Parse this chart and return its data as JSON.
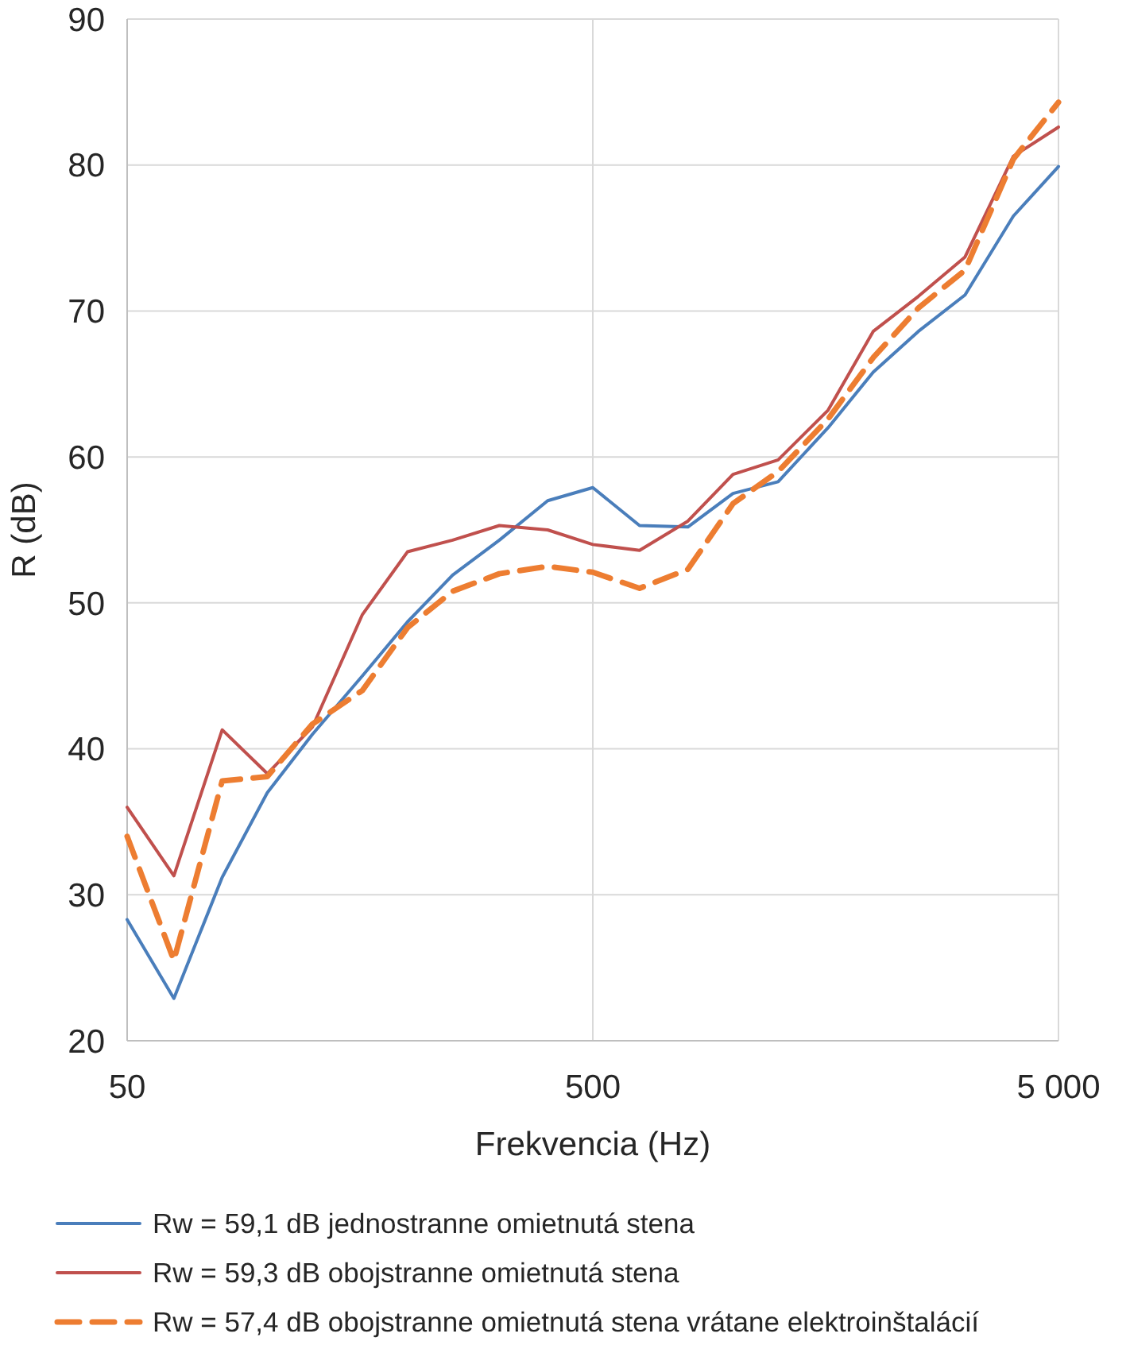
{
  "chart_data": {
    "type": "line",
    "xlabel": "Frekvencia (Hz)",
    "ylabel": "R (dB)",
    "log": "x",
    "grid": true,
    "legend": "bottom",
    "xlim": [
      50,
      5000
    ],
    "xticks": [
      50,
      500,
      {
        "value": 5000,
        "label": "5 000"
      }
    ],
    "ylim": [
      20,
      90
    ],
    "yticks": [
      20,
      30,
      40,
      50,
      60,
      70,
      80,
      90
    ],
    "x": [
      50,
      63,
      80,
      100,
      125,
      160,
      200,
      250,
      315,
      400,
      500,
      630,
      800,
      1000,
      1250,
      1600,
      2000,
      2500,
      3150,
      4000,
      5000
    ],
    "series": [
      {
        "name": "Rw = 59,1 dB jednostranne omietnutá stena",
        "color": "#4a7ebb",
        "line_style": "solid",
        "values": [
          28.3,
          22.9,
          31.2,
          37,
          41,
          45,
          48.7,
          51.9,
          54.3,
          57,
          57.9,
          55.3,
          55.2,
          57.5,
          58.3,
          62,
          65.8,
          68.6,
          71.1,
          76.5,
          79.9
        ]
      },
      {
        "name": "Rw = 59,3 dB obojstranne omietnutá stena",
        "color": "#c0504d",
        "line_style": "solid",
        "values": [
          36,
          31.3,
          41.3,
          38.3,
          41.5,
          49.2,
          53.5,
          54.3,
          55.3,
          55,
          54,
          53.6,
          55.6,
          58.8,
          59.8,
          63.2,
          68.6,
          71,
          73.7,
          80.6,
          82.6
        ]
      },
      {
        "name": "Rw = 57,4 dB obojstranne omietnutá stena vrátane elektroinštalácií",
        "color": "#ed7d31",
        "line_style": "dashed",
        "values": [
          34,
          25.5,
          37.8,
          38.1,
          41.7,
          44,
          48.3,
          50.8,
          52,
          52.5,
          52.1,
          51,
          52.3,
          56.8,
          59,
          62.6,
          66.8,
          70.2,
          72.8,
          80.4,
          84.3
        ]
      }
    ]
  }
}
